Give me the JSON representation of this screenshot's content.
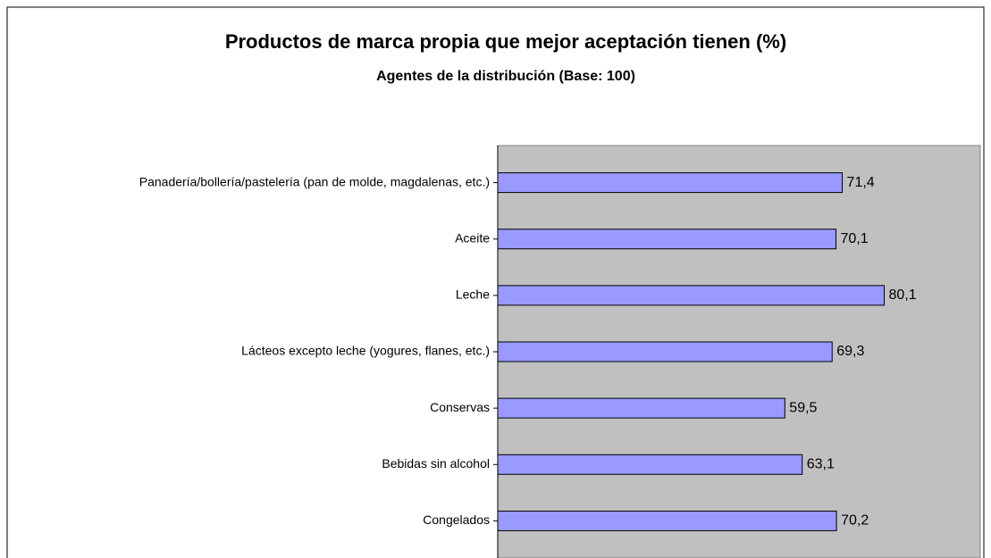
{
  "chart_data": {
    "type": "bar",
    "orientation": "horizontal",
    "title": "Productos de marca propia que mejor aceptación tienen (%)",
    "subtitle": "Agentes de la distribución (Base: 100)",
    "categories": [
      "Panadería/bollería/pastelería (pan de molde, magdalenas, etc.)",
      "Aceite",
      "Leche",
      "Lácteos excepto leche (yogures, flanes, etc.)",
      "Conservas",
      "Bebidas sin alcohol",
      "Congelados"
    ],
    "values": [
      71.4,
      70.1,
      80.1,
      69.3,
      59.5,
      63.1,
      70.2
    ],
    "value_labels": [
      "71,4",
      "70,1",
      "80,1",
      "69,3",
      "59,5",
      "63,1",
      "70,2"
    ],
    "color": "#9999ff",
    "plot_background": "#c0c0c0",
    "xlim": [
      0,
      100
    ]
  }
}
